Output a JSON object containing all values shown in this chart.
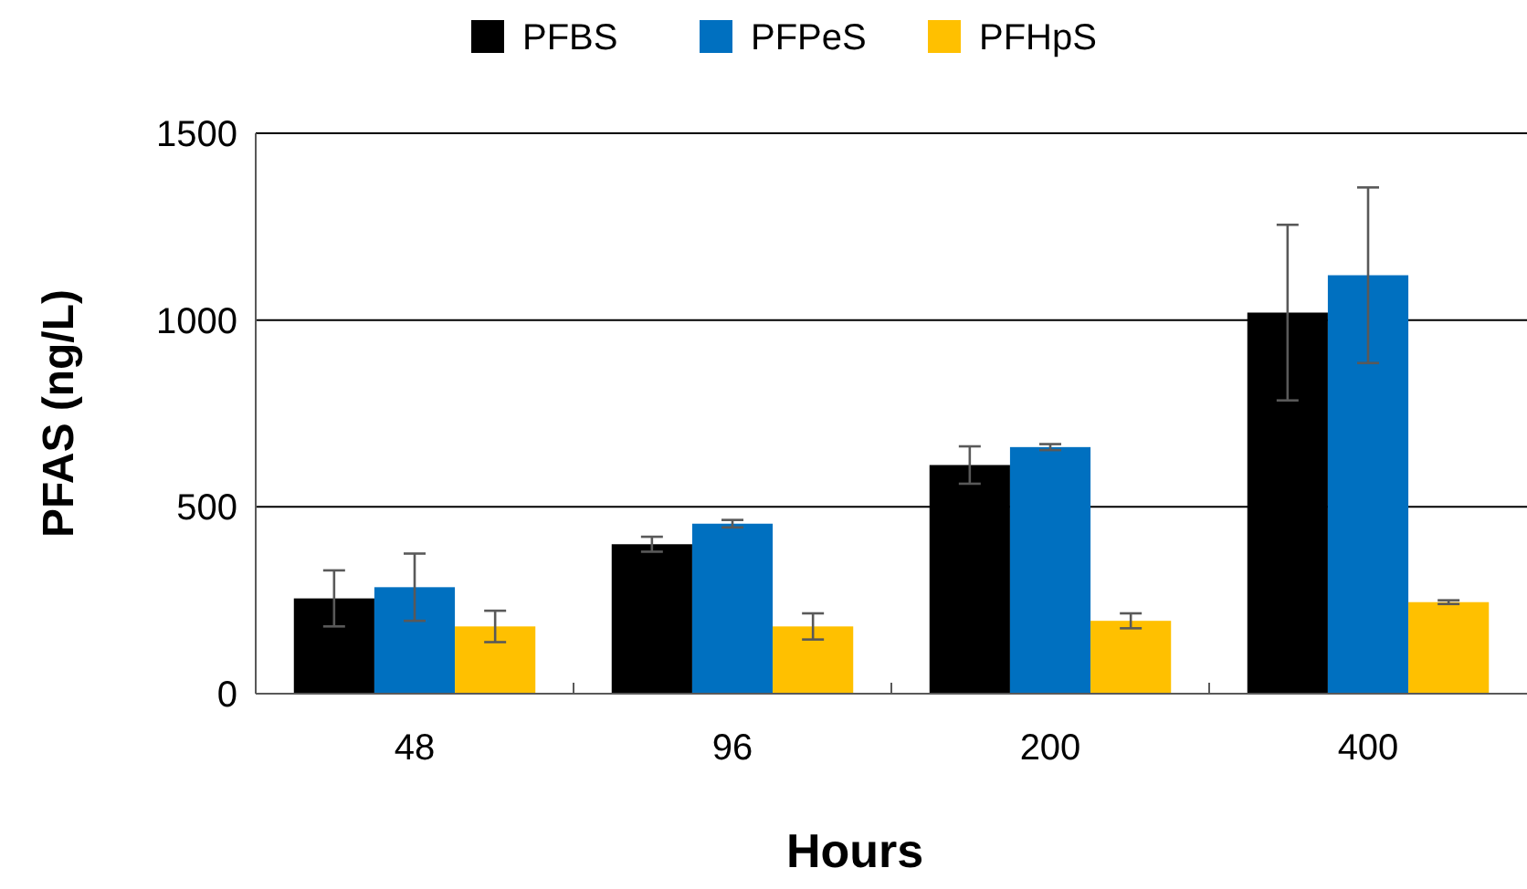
{
  "chart_data": {
    "type": "bar",
    "xlabel": "Hours",
    "ylabel": "PFAS (ng/L)",
    "categories": [
      "48",
      "96",
      "200",
      "400"
    ],
    "series": [
      {
        "name": "PFBS",
        "color": "#000000",
        "values": [
          255,
          400,
          612,
          1020
        ],
        "errors": [
          75,
          20,
          50,
          235
        ]
      },
      {
        "name": "PFPeS",
        "color": "#0070c0",
        "values": [
          285,
          455,
          660,
          1120
        ],
        "errors": [
          90,
          10,
          8,
          235
        ]
      },
      {
        "name": "PFHpS",
        "color": "#ffc000",
        "values": [
          180,
          180,
          195,
          245
        ],
        "errors": [
          42,
          35,
          20,
          5
        ]
      }
    ],
    "ylim": [
      0,
      1500
    ],
    "yticks": [
      0,
      500,
      1000,
      1500
    ],
    "grid": "y",
    "legend": "top"
  }
}
